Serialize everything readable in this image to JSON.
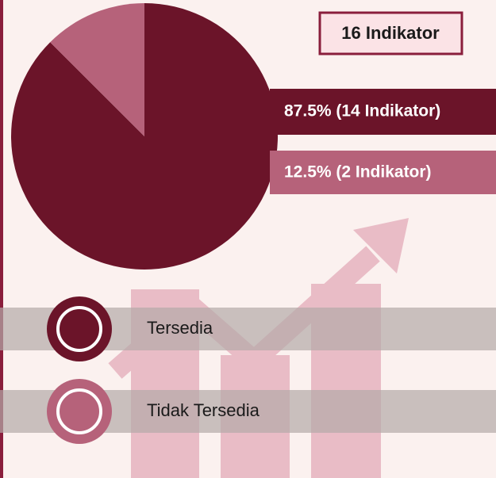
{
  "chart_data": {
    "type": "pie",
    "title": "16 Indikator",
    "categories": [
      "Tersedia",
      "Tidak Tersedia"
    ],
    "values": [
      87.5,
      12.5
    ],
    "value_labels": [
      "87.5% (14 Indikator)",
      "12.5%   (2 Indikator)"
    ],
    "colors": [
      "#6b1429",
      "#b6627a"
    ]
  }
}
